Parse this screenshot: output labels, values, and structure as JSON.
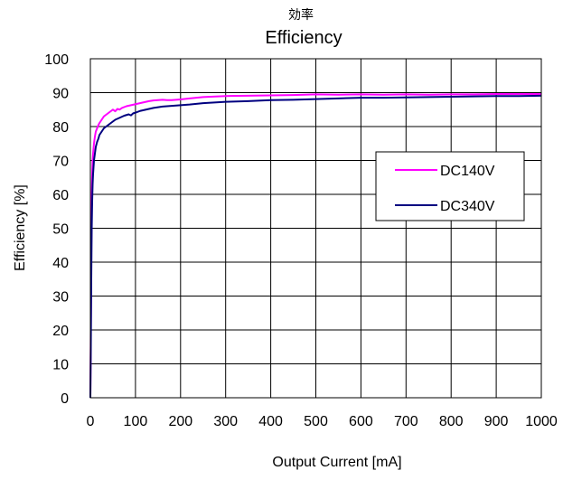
{
  "chart_data": {
    "type": "line",
    "title_jp": "効率",
    "title": "Efficiency",
    "xlabel": "Output Current [mA]",
    "ylabel": "Efficiency [%]",
    "xlim": [
      0,
      1000
    ],
    "ylim": [
      0,
      100
    ],
    "xticks": [
      0,
      100,
      200,
      300,
      400,
      500,
      600,
      700,
      800,
      900,
      1000
    ],
    "yticks": [
      0,
      10,
      20,
      30,
      40,
      50,
      60,
      70,
      80,
      90,
      100
    ],
    "grid": true,
    "legend_position": "right-middle",
    "series": [
      {
        "name": "DC140V",
        "color": "#ff00ff",
        "x": [
          0,
          1,
          2,
          3,
          4,
          5,
          6,
          8,
          10,
          12,
          15,
          18,
          20,
          25,
          30,
          35,
          40,
          45,
          50,
          55,
          60,
          65,
          70,
          80,
          90,
          100,
          110,
          120,
          130,
          140,
          150,
          160,
          170,
          180,
          200,
          220,
          250,
          300,
          350,
          400,
          450,
          500,
          550,
          600,
          650,
          700,
          750,
          800,
          850,
          900,
          950,
          1000
        ],
        "y": [
          0,
          20,
          45,
          60,
          66,
          70,
          72,
          75,
          77,
          78.5,
          79.5,
          80.5,
          81,
          82,
          83,
          83.5,
          84,
          84.5,
          85,
          84.5,
          85.2,
          85,
          85.5,
          86,
          86.3,
          86.6,
          86.9,
          87.2,
          87.5,
          87.7,
          87.8,
          87.9,
          87.8,
          87.8,
          88,
          88.3,
          88.7,
          89,
          89.1,
          89.2,
          89.3,
          89.5,
          89.4,
          89.5,
          89.4,
          89.5,
          89.4,
          89.5,
          89.5,
          89.6,
          89.6,
          89.6
        ]
      },
      {
        "name": "DC340V",
        "color": "#000080",
        "x": [
          0,
          1,
          2,
          3,
          4,
          5,
          6,
          8,
          10,
          12,
          15,
          18,
          20,
          25,
          30,
          35,
          40,
          45,
          50,
          55,
          60,
          65,
          70,
          75,
          80,
          85,
          90,
          95,
          100,
          110,
          120,
          130,
          140,
          150,
          160,
          170,
          180,
          200,
          220,
          250,
          300,
          350,
          400,
          450,
          500,
          550,
          600,
          650,
          700,
          750,
          800,
          850,
          900,
          950,
          1000
        ],
        "y": [
          0,
          15,
          35,
          50,
          58,
          63,
          66,
          70,
          72,
          74,
          75.5,
          76.5,
          77.5,
          78.5,
          79.5,
          80,
          80.5,
          81,
          81.5,
          82,
          82.3,
          82.6,
          82.9,
          83.2,
          83.4,
          83.6,
          83.3,
          83.9,
          84.1,
          84.6,
          84.9,
          85.2,
          85.5,
          85.7,
          85.9,
          86,
          86.1,
          86.3,
          86.5,
          86.9,
          87.3,
          87.5,
          87.8,
          87.9,
          88.1,
          88.3,
          88.5,
          88.5,
          88.6,
          88.7,
          88.8,
          88.9,
          89,
          89,
          89.1
        ]
      }
    ]
  }
}
